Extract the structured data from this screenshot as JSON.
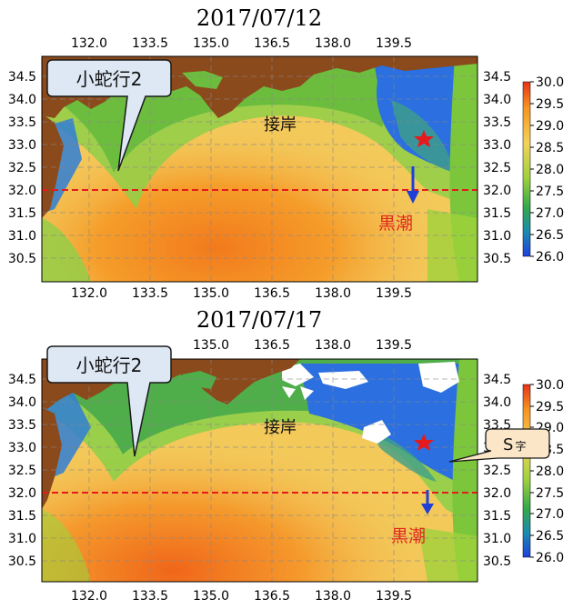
{
  "colors": {
    "land": "#8b4a1c",
    "warm": "#f28a1e",
    "mid": "#f3c95a",
    "cool": "#7cc63c",
    "cold": "#2b6fe0",
    "marker": "#e41a1c",
    "arrow": "#1f3fd6",
    "line": "#e41a1c"
  },
  "x_ticks": [
    "132.0",
    "133.5",
    "135.0",
    "136.5",
    "138.0",
    "139.5"
  ],
  "y_ticks": [
    "34.5",
    "34.0",
    "33.5",
    "33.0",
    "32.5",
    "32.0",
    "31.5",
    "31.0",
    "30.5"
  ],
  "colorbar": {
    "ticks": [
      "30.0",
      "29.5",
      "29.0",
      "28.5",
      "28.0",
      "27.5",
      "27.0",
      "26.5",
      "26.0"
    ],
    "max": 30.0,
    "min": 26.0
  },
  "panels": [
    {
      "title": "2017/07/12",
      "callout": "小蛇行2",
      "coast_label": "接岸",
      "current_label": "黒潮"
    },
    {
      "title": "2017/07/17",
      "callout": "小蛇行2",
      "coast_label": "接岸",
      "current_label": "黒潮",
      "s_label": "S",
      "s_sub": "字"
    }
  ]
}
